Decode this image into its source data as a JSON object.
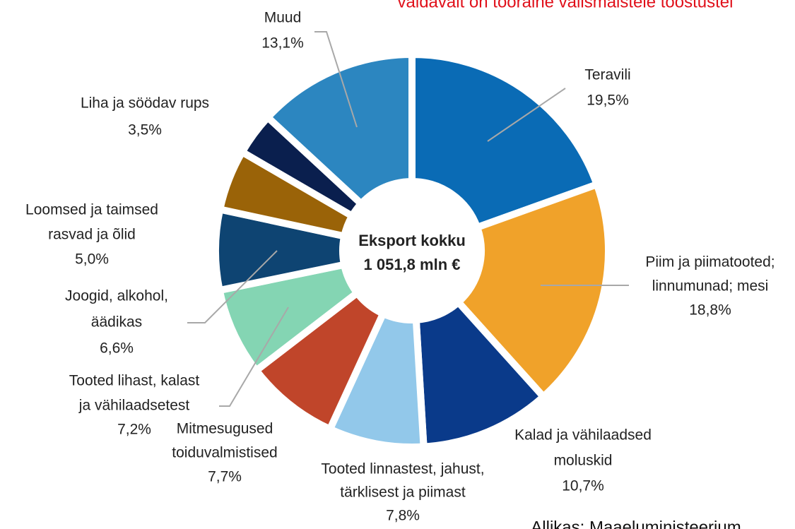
{
  "chart_data": {
    "type": "donut",
    "header": "valdavalt on tooraine välismaistele tööstustel",
    "center_text": [
      "Eksport kokku",
      "1 051,8 mln €"
    ],
    "source": "Allikas: Maaeluministeerium",
    "categories": [
      [
        "Teravili"
      ],
      [
        "Piim ja piimatooted;",
        "linnumunad; mesi"
      ],
      [
        "Kalad ja vähilaadsed",
        "moluskid"
      ],
      [
        "Tooted linnastest, jahust,",
        "tärklisest ja piimast"
      ],
      [
        "Mitmesugused",
        "toiduvalmistised"
      ],
      [
        "Tooted lihast, kalast",
        "ja vähilaadsetest"
      ],
      [
        "Joogid, alkohol,",
        "äädikas"
      ],
      [
        "Loomsed ja taimsed",
        "rasvad ja õlid"
      ],
      [
        "Liha ja söödav rups"
      ],
      [
        "Muud"
      ]
    ],
    "values": [
      19.5,
      18.8,
      10.7,
      7.8,
      7.7,
      7.2,
      6.6,
      5.0,
      3.5,
      13.1
    ],
    "value_labels": [
      "19,5%",
      "18,8%",
      "10,7%",
      "7,8%",
      "7,7%",
      "7,2%",
      "6,6%",
      "5,0%",
      "3,5%",
      "13,1%"
    ],
    "colors": [
      "#0a6bb5",
      "#f0a22a",
      "#0a3a8a",
      "#92c8ea",
      "#c0452a",
      "#84d5b3",
      "#0e4472",
      "#9a6308",
      "#0a1f4e",
      "#2c86c0"
    ]
  }
}
